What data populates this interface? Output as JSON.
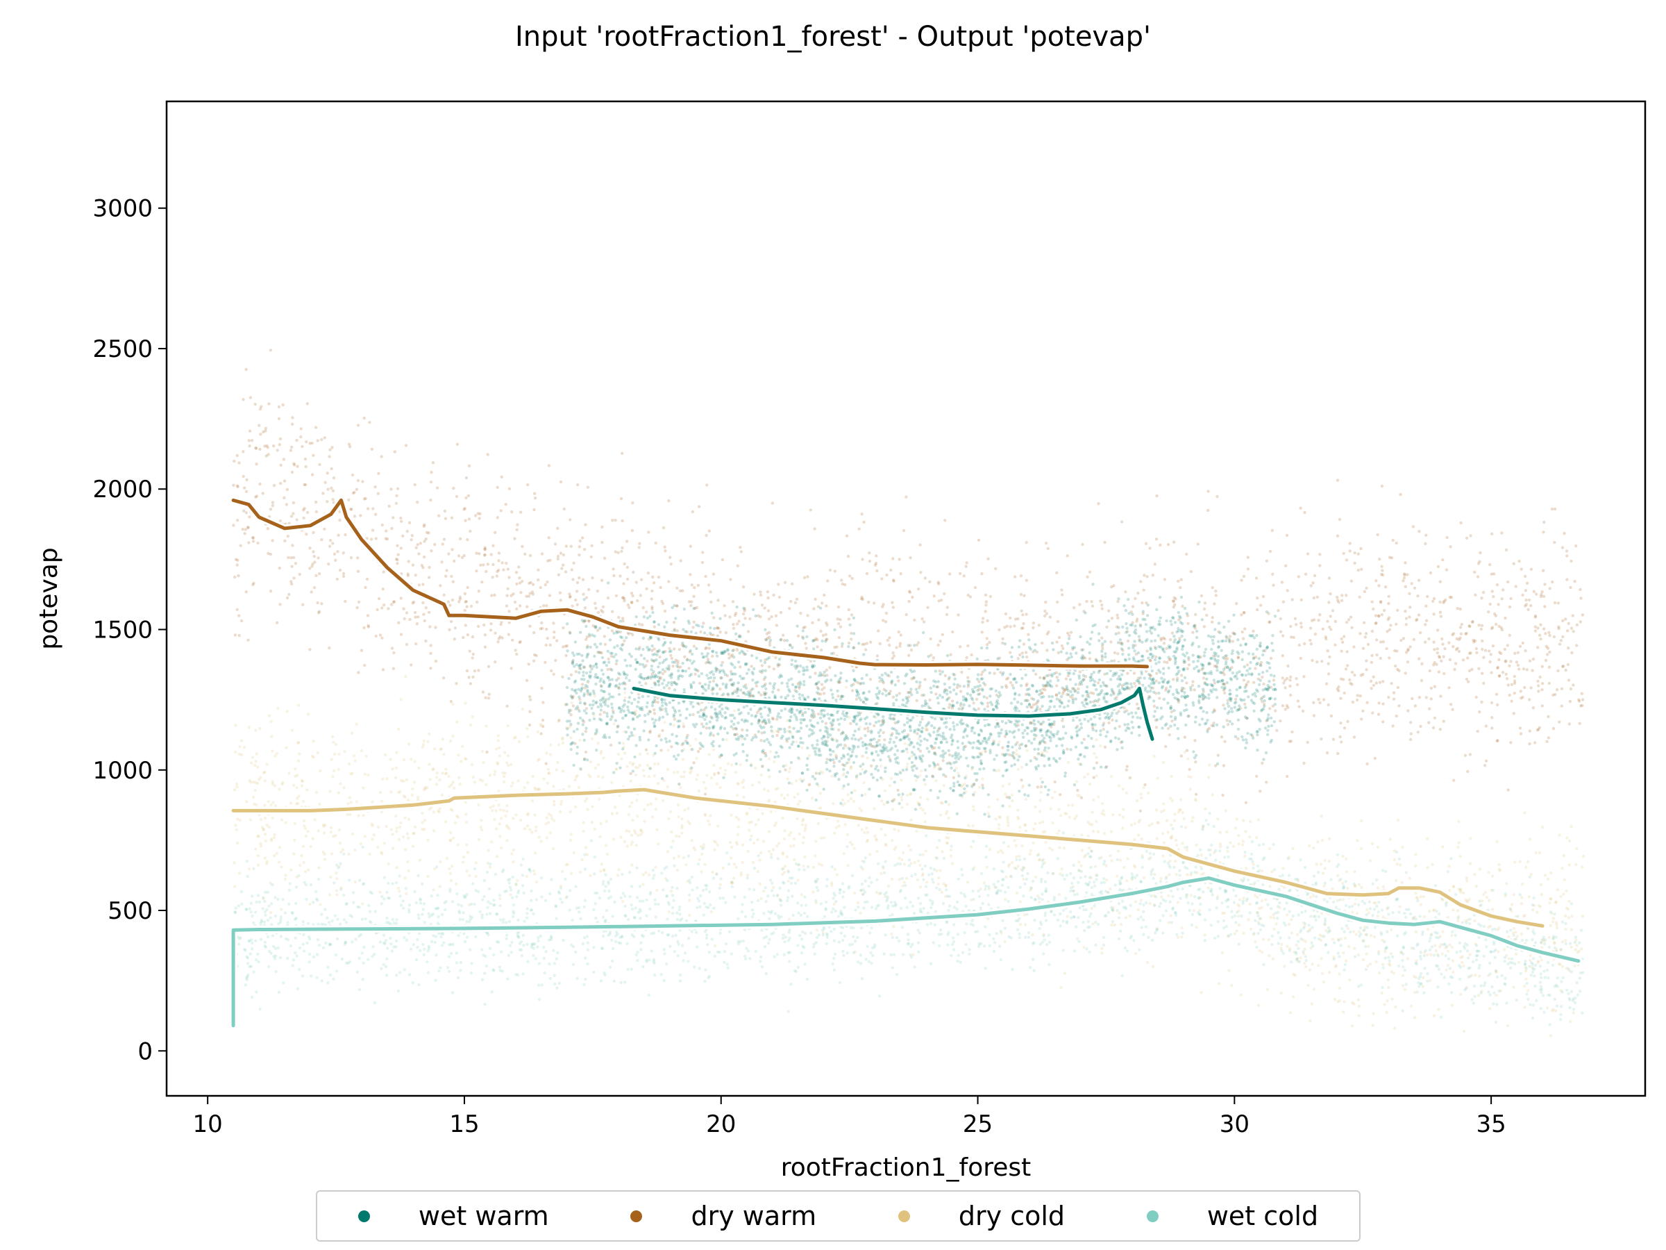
{
  "chart_data": {
    "type": "scatter",
    "title": "Input 'rootFraction1_forest' - Output 'potevap'",
    "xlabel": "rootFraction1_forest",
    "ylabel": "potevap",
    "xlim": [
      9.2,
      38.0
    ],
    "ylim": [
      -160,
      3380
    ],
    "xticks": [
      10,
      15,
      20,
      25,
      30,
      35
    ],
    "yticks": [
      0,
      500,
      1000,
      1500,
      2000,
      2500,
      3000
    ],
    "grid": false,
    "legend_position": "bottom-center",
    "series": [
      {
        "name": "wet warm",
        "color": "#01796d",
        "scatter_center": [
          [
            18.2,
            1300
          ],
          [
            20,
            1290
          ],
          [
            22,
            1200
          ],
          [
            24,
            1150
          ],
          [
            26,
            1180
          ],
          [
            27.5,
            1300
          ],
          [
            28.5,
            1380
          ],
          [
            29.5,
            1330
          ],
          [
            30.5,
            1280
          ]
        ],
        "scatter_spread": 180,
        "scatter_x_range": [
          17.0,
          30.8
        ],
        "trend": [
          [
            18.3,
            1290
          ],
          [
            19,
            1265
          ],
          [
            20,
            1250
          ],
          [
            21,
            1240
          ],
          [
            22,
            1230
          ],
          [
            23,
            1218
          ],
          [
            24,
            1205
          ],
          [
            25,
            1195
          ],
          [
            26,
            1192
          ],
          [
            26.8,
            1200
          ],
          [
            27.4,
            1215
          ],
          [
            27.8,
            1240
          ],
          [
            28.05,
            1265
          ],
          [
            28.15,
            1290
          ],
          [
            28.22,
            1230
          ],
          [
            28.3,
            1170
          ],
          [
            28.4,
            1110
          ]
        ]
      },
      {
        "name": "dry warm",
        "color": "#a6611a",
        "scatter_center": [
          [
            10.5,
            1900
          ],
          [
            11,
            2000
          ],
          [
            12,
            1900
          ],
          [
            13,
            1820
          ],
          [
            14,
            1680
          ],
          [
            15,
            1620
          ],
          [
            17,
            1560
          ],
          [
            19,
            1480
          ],
          [
            22,
            1400
          ],
          [
            25,
            1370
          ],
          [
            28,
            1380
          ],
          [
            30,
            1400
          ],
          [
            33,
            1500
          ],
          [
            36,
            1450
          ]
        ],
        "scatter_spread": 300,
        "scatter_x_range": [
          10.5,
          36.8
        ],
        "trend": [
          [
            10.5,
            1960
          ],
          [
            10.8,
            1945
          ],
          [
            11,
            1900
          ],
          [
            11.5,
            1860
          ],
          [
            12,
            1870
          ],
          [
            12.4,
            1910
          ],
          [
            12.6,
            1960
          ],
          [
            12.7,
            1900
          ],
          [
            13,
            1820
          ],
          [
            13.5,
            1720
          ],
          [
            14,
            1640
          ],
          [
            14.6,
            1590
          ],
          [
            14.7,
            1550
          ],
          [
            15,
            1550
          ],
          [
            15.5,
            1545
          ],
          [
            16,
            1540
          ],
          [
            16.5,
            1565
          ],
          [
            17,
            1570
          ],
          [
            17.5,
            1545
          ],
          [
            18,
            1510
          ],
          [
            19,
            1480
          ],
          [
            20,
            1460
          ],
          [
            21,
            1420
          ],
          [
            22,
            1400
          ],
          [
            22.7,
            1380
          ],
          [
            23,
            1375
          ],
          [
            24,
            1374
          ],
          [
            25,
            1376
          ],
          [
            26,
            1373
          ],
          [
            27,
            1370
          ],
          [
            28,
            1370
          ],
          [
            28.3,
            1368
          ]
        ]
      },
      {
        "name": "dry cold",
        "color": "#dfc27d",
        "scatter_center": [
          [
            10.5,
            850
          ],
          [
            13,
            850
          ],
          [
            15,
            900
          ],
          [
            17,
            930
          ],
          [
            20,
            870
          ],
          [
            23,
            810
          ],
          [
            25,
            780
          ],
          [
            28,
            730
          ],
          [
            29,
            700
          ],
          [
            30,
            600
          ],
          [
            31,
            430
          ],
          [
            32,
            420
          ],
          [
            34,
            450
          ],
          [
            35,
            470
          ],
          [
            36.7,
            450
          ]
        ],
        "scatter_spread": 250,
        "scatter_x_range": [
          10.5,
          36.8
        ],
        "trend": [
          [
            10.5,
            855
          ],
          [
            12,
            855
          ],
          [
            12.7,
            860
          ],
          [
            14,
            875
          ],
          [
            14.7,
            890
          ],
          [
            14.8,
            900
          ],
          [
            16,
            910
          ],
          [
            17,
            915
          ],
          [
            17.7,
            920
          ],
          [
            18,
            925
          ],
          [
            18.5,
            930
          ],
          [
            19.5,
            900
          ],
          [
            21,
            870
          ],
          [
            22,
            845
          ],
          [
            23,
            820
          ],
          [
            24,
            795
          ],
          [
            25,
            780
          ],
          [
            26,
            765
          ],
          [
            27,
            750
          ],
          [
            28,
            735
          ],
          [
            28.7,
            720
          ],
          [
            29,
            690
          ],
          [
            30,
            640
          ],
          [
            31,
            600
          ],
          [
            31.8,
            560
          ],
          [
            32.5,
            555
          ],
          [
            33,
            560
          ],
          [
            33.2,
            580
          ],
          [
            33.6,
            580
          ],
          [
            34,
            565
          ],
          [
            34.4,
            520
          ],
          [
            35,
            480
          ],
          [
            35.5,
            460
          ],
          [
            36,
            445
          ]
        ]
      },
      {
        "name": "wet cold",
        "color": "#80cdc1",
        "scatter_center": [
          [
            10.5,
            430
          ],
          [
            20,
            460
          ],
          [
            25,
            500
          ],
          [
            28,
            560
          ],
          [
            29.5,
            620
          ],
          [
            30.5,
            560
          ],
          [
            32,
            480
          ],
          [
            34,
            380
          ],
          [
            35,
            350
          ],
          [
            36.7,
            280
          ]
        ],
        "scatter_spread": 150,
        "scatter_x_range": [
          10.5,
          36.8
        ],
        "trend": [
          [
            10.5,
            90
          ],
          [
            10.5,
            430
          ],
          [
            11,
            432
          ],
          [
            13,
            434
          ],
          [
            15,
            436
          ],
          [
            17,
            440
          ],
          [
            19,
            445
          ],
          [
            21,
            450
          ],
          [
            23,
            462
          ],
          [
            25,
            485
          ],
          [
            26,
            505
          ],
          [
            27,
            530
          ],
          [
            28,
            560
          ],
          [
            28.7,
            585
          ],
          [
            29,
            600
          ],
          [
            29.5,
            615
          ],
          [
            30,
            590
          ],
          [
            31,
            550
          ],
          [
            32,
            490
          ],
          [
            32.5,
            465
          ],
          [
            33,
            455
          ],
          [
            33.5,
            450
          ],
          [
            34,
            460
          ],
          [
            34.3,
            445
          ],
          [
            35,
            410
          ],
          [
            35.5,
            375
          ],
          [
            36,
            350
          ],
          [
            36.7,
            320
          ]
        ]
      }
    ]
  }
}
